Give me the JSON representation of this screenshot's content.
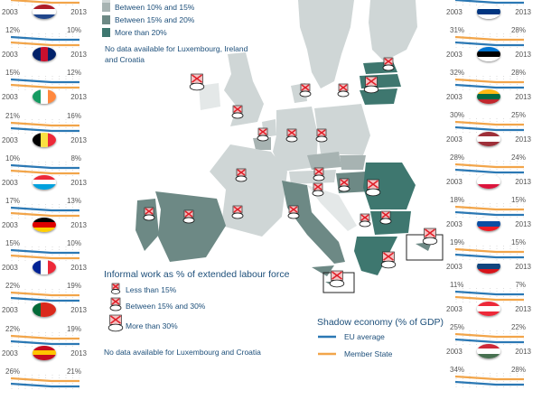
{
  "colors": {
    "eu_average": "#2b78b4",
    "member_state": "#f2a54a",
    "light": "#cfd6d6",
    "between_10_15": "#a7b3b2",
    "between_15_20": "#6d8985",
    "more_than_20": "#3e776f"
  },
  "shadow_legend": {
    "between_10_15": "Between 10% and 15%",
    "between_15_20": "Between 15% and 20%",
    "more_than_20": "More than 20%",
    "no_data": "No data available for Luxembourg, Ireland and Croatia"
  },
  "informal_legend": {
    "title": "Informal work as % of extended labour force",
    "less_15": "Less than  15%",
    "between_15_30": "Between 15% and 30%",
    "more_30": "More than 30%",
    "no_data": "No data  available for Luxembourg and Croatia"
  },
  "line_legend": {
    "title": "Shadow economy (% of GDP)",
    "eu_average": "EU average",
    "member_state": "Member State"
  },
  "left_panels": [
    {
      "country": "Netherlands",
      "start": "",
      "end": "",
      "year_start": "2003",
      "year_end": "2013",
      "flag": [
        "#ae1c28",
        "#ffffff",
        "#21468b"
      ],
      "flag_dir": "h",
      "member_above": false
    },
    {
      "country": "United Kingdom",
      "start": "12%",
      "end": "10%",
      "year_start": "2003",
      "year_end": "2013",
      "flag": [
        "#012169",
        "#c8102e",
        "#012169"
      ],
      "flag_dir": "v",
      "member_above": false
    },
    {
      "country": "Ireland",
      "start": "15%",
      "end": "12%",
      "year_start": "2003",
      "year_end": "2013",
      "flag": [
        "#169b62",
        "#ffffff",
        "#ff883e"
      ],
      "flag_dir": "v",
      "member_above": false
    },
    {
      "country": "Belgium",
      "start": "21%",
      "end": "16%",
      "year_start": "2003",
      "year_end": "2013",
      "flag": [
        "#000000",
        "#fae042",
        "#ed2939"
      ],
      "flag_dir": "v",
      "member_above": true
    },
    {
      "country": "Luxembourg",
      "start": "10%",
      "end": "8%",
      "year_start": "2003",
      "year_end": "2013",
      "flag": [
        "#ed2939",
        "#ffffff",
        "#00a1de"
      ],
      "flag_dir": "h",
      "member_above": false
    },
    {
      "country": "Germany",
      "start": "17%",
      "end": "13%",
      "year_start": "2003",
      "year_end": "2013",
      "flag": [
        "#000000",
        "#dd0000",
        "#ffce00"
      ],
      "flag_dir": "h",
      "member_above": false
    },
    {
      "country": "France",
      "start": "15%",
      "end": "10%",
      "year_start": "2003",
      "year_end": "2013",
      "flag": [
        "#002395",
        "#ffffff",
        "#ed2939"
      ],
      "flag_dir": "v",
      "member_above": false
    },
    {
      "country": "Portugal",
      "start": "22%",
      "end": "19%",
      "year_start": "2003",
      "year_end": "2013",
      "flag": [
        "#046a38",
        "#da291c",
        "#da291c"
      ],
      "flag_dir": "v",
      "member_above": true
    },
    {
      "country": "Spain",
      "start": "22%",
      "end": "19%",
      "year_start": "2003",
      "year_end": "2013",
      "flag": [
        "#c60b1e",
        "#ffc400",
        "#c60b1e"
      ],
      "flag_dir": "h",
      "member_above": true
    },
    {
      "country": "",
      "start": "26%",
      "end": "21%",
      "year_start": "",
      "year_end": "",
      "flag": [],
      "flag_dir": "h",
      "member_above": true
    }
  ],
  "right_panels": [
    {
      "country": "Finland",
      "start": "",
      "end": "",
      "year_start": "2003",
      "year_end": "2013",
      "flag": [
        "#ffffff",
        "#003580",
        "#ffffff"
      ],
      "flag_dir": "h",
      "member_above": true
    },
    {
      "country": "Estonia",
      "start": "31%",
      "end": "28%",
      "year_start": "2003",
      "year_end": "2013",
      "flag": [
        "#0072ce",
        "#000000",
        "#ffffff"
      ],
      "flag_dir": "h",
      "member_above": true
    },
    {
      "country": "Lithuania",
      "start": "32%",
      "end": "28%",
      "year_start": "2003",
      "year_end": "2013",
      "flag": [
        "#fdb913",
        "#006a44",
        "#c1272d"
      ],
      "flag_dir": "h",
      "member_above": true
    },
    {
      "country": "Latvia",
      "start": "30%",
      "end": "25%",
      "year_start": "2003",
      "year_end": "2013",
      "flag": [
        "#9e3039",
        "#ffffff",
        "#9e3039"
      ],
      "flag_dir": "h",
      "member_above": true
    },
    {
      "country": "Poland",
      "start": "28%",
      "end": "24%",
      "year_start": "2003",
      "year_end": "2013",
      "flag": [
        "#ffffff",
        "#ffffff",
        "#dc143c"
      ],
      "flag_dir": "h",
      "member_above": true
    },
    {
      "country": "Slovakia",
      "start": "18%",
      "end": "15%",
      "year_start": "2003",
      "year_end": "2013",
      "flag": [
        "#ffffff",
        "#0b4ea2",
        "#ee1c25"
      ],
      "flag_dir": "h",
      "member_above": true
    },
    {
      "country": "Czech Republic",
      "start": "19%",
      "end": "15%",
      "year_start": "2003",
      "year_end": "2013",
      "flag": [
        "#ffffff",
        "#11457e",
        "#d7141a"
      ],
      "flag_dir": "h",
      "member_above": true
    },
    {
      "country": "Austria",
      "start": "11%",
      "end": "7%",
      "year_start": "2003",
      "year_end": "2013",
      "flag": [
        "#ed2939",
        "#ffffff",
        "#ed2939"
      ],
      "flag_dir": "h",
      "member_above": false
    },
    {
      "country": "Hungary",
      "start": "25%",
      "end": "22%",
      "year_start": "2003",
      "year_end": "2013",
      "flag": [
        "#ce2939",
        "#ffffff",
        "#477050"
      ],
      "flag_dir": "h",
      "member_above": true
    },
    {
      "country": "",
      "start": "34%",
      "end": "28%",
      "year_start": "",
      "year_end": "",
      "flag": [],
      "flag_dir": "h",
      "member_above": true
    }
  ]
}
